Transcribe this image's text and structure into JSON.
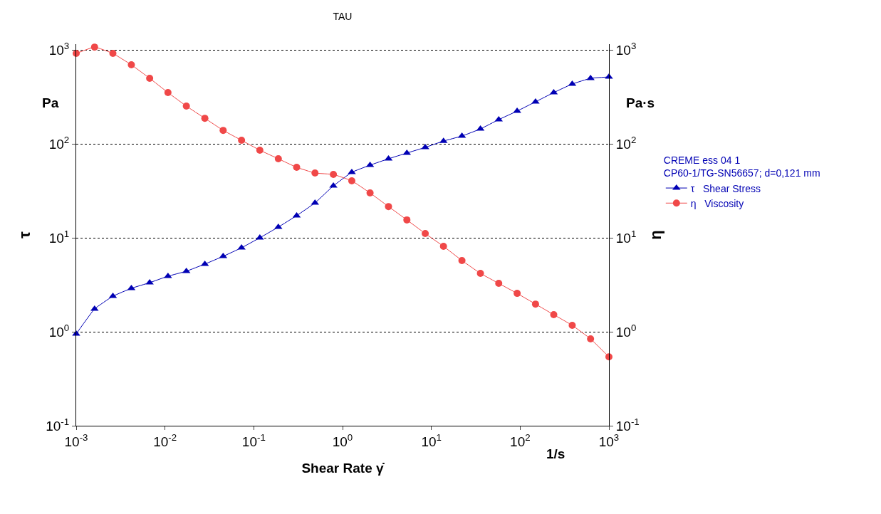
{
  "chart_data": {
    "type": "line",
    "title": "TAU",
    "xlabel": "Shear Rate γ̇",
    "ylabel": "τ",
    "y2label": "η",
    "legend_title": "CREME ess 04 1\nCP60-1/TG-SN56657; d=0,121 mm",
    "annotations": [
      "Pa",
      "Pa·s",
      "1/s"
    ],
    "x": [
      0.001,
      0.00161,
      0.00259,
      0.00418,
      0.00672,
      0.0108,
      0.0174,
      0.0281,
      0.0452,
      0.0728,
      0.117,
      0.189,
      0.304,
      0.489,
      0.788,
      1.27,
      2.04,
      3.29,
      5.3,
      8.53,
      13.7,
      22.1,
      35.7,
      57.4,
      92.5,
      149,
      239,
      386,
      621,
      1000
    ],
    "series": [
      {
        "name": "τ   Shear Stress",
        "color": "#0000b4",
        "marker": "triangle",
        "values": [
          0.95,
          1.75,
          2.39,
          2.9,
          3.33,
          3.9,
          4.41,
          5.25,
          6.35,
          7.83,
          10.0,
          13.0,
          17.2,
          23.5,
          35.7,
          49.8,
          59.3,
          69.3,
          79.8,
          91.6,
          107,
          121,
          144,
          181,
          223,
          280,
          351,
          433,
          498,
          515
        ]
      },
      {
        "name": "η   Viscosity",
        "color": "#f04848",
        "marker": "circle",
        "values": [
          916,
          1070,
          916,
          693,
          498,
          351,
          252,
          187,
          139,
          109,
          85.5,
          69.3,
          56.2,
          48.9,
          47.2,
          40.4,
          30.0,
          21.5,
          15.5,
          11.1,
          8.11,
          5.73,
          4.18,
          3.27,
          2.56,
          1.97,
          1.52,
          1.17,
          0.84,
          0.54
        ]
      }
    ],
    "log": "xy",
    "xlim": [
      0.001,
      1000
    ],
    "ylim": [
      0.1,
      1150
    ],
    "xticks": [
      {
        "value": 0.001,
        "label": "10$^{-3}$"
      },
      {
        "value": 0.01,
        "label": "10$^{-2}$"
      },
      {
        "value": 0.1,
        "label": "10$^{-1}$"
      },
      {
        "value": 1,
        "label": "10$^{0}$"
      },
      {
        "value": 10,
        "label": "10$^{1}$"
      },
      {
        "value": 100,
        "label": "10$^{2}$"
      },
      {
        "value": 1000,
        "label": "10$^{3}$"
      }
    ],
    "yticks": [
      {
        "value": 0.1,
        "label": "10$^{-1}$"
      },
      {
        "value": 1,
        "label": "10$^{0}$"
      },
      {
        "value": 10,
        "label": "10$^{1}$"
      },
      {
        "value": 100,
        "label": "10$^{2}$"
      },
      {
        "value": 1000,
        "label": "10$^{3}$"
      }
    ],
    "grid": "y",
    "legend": "right",
    "line_style": "solid"
  }
}
